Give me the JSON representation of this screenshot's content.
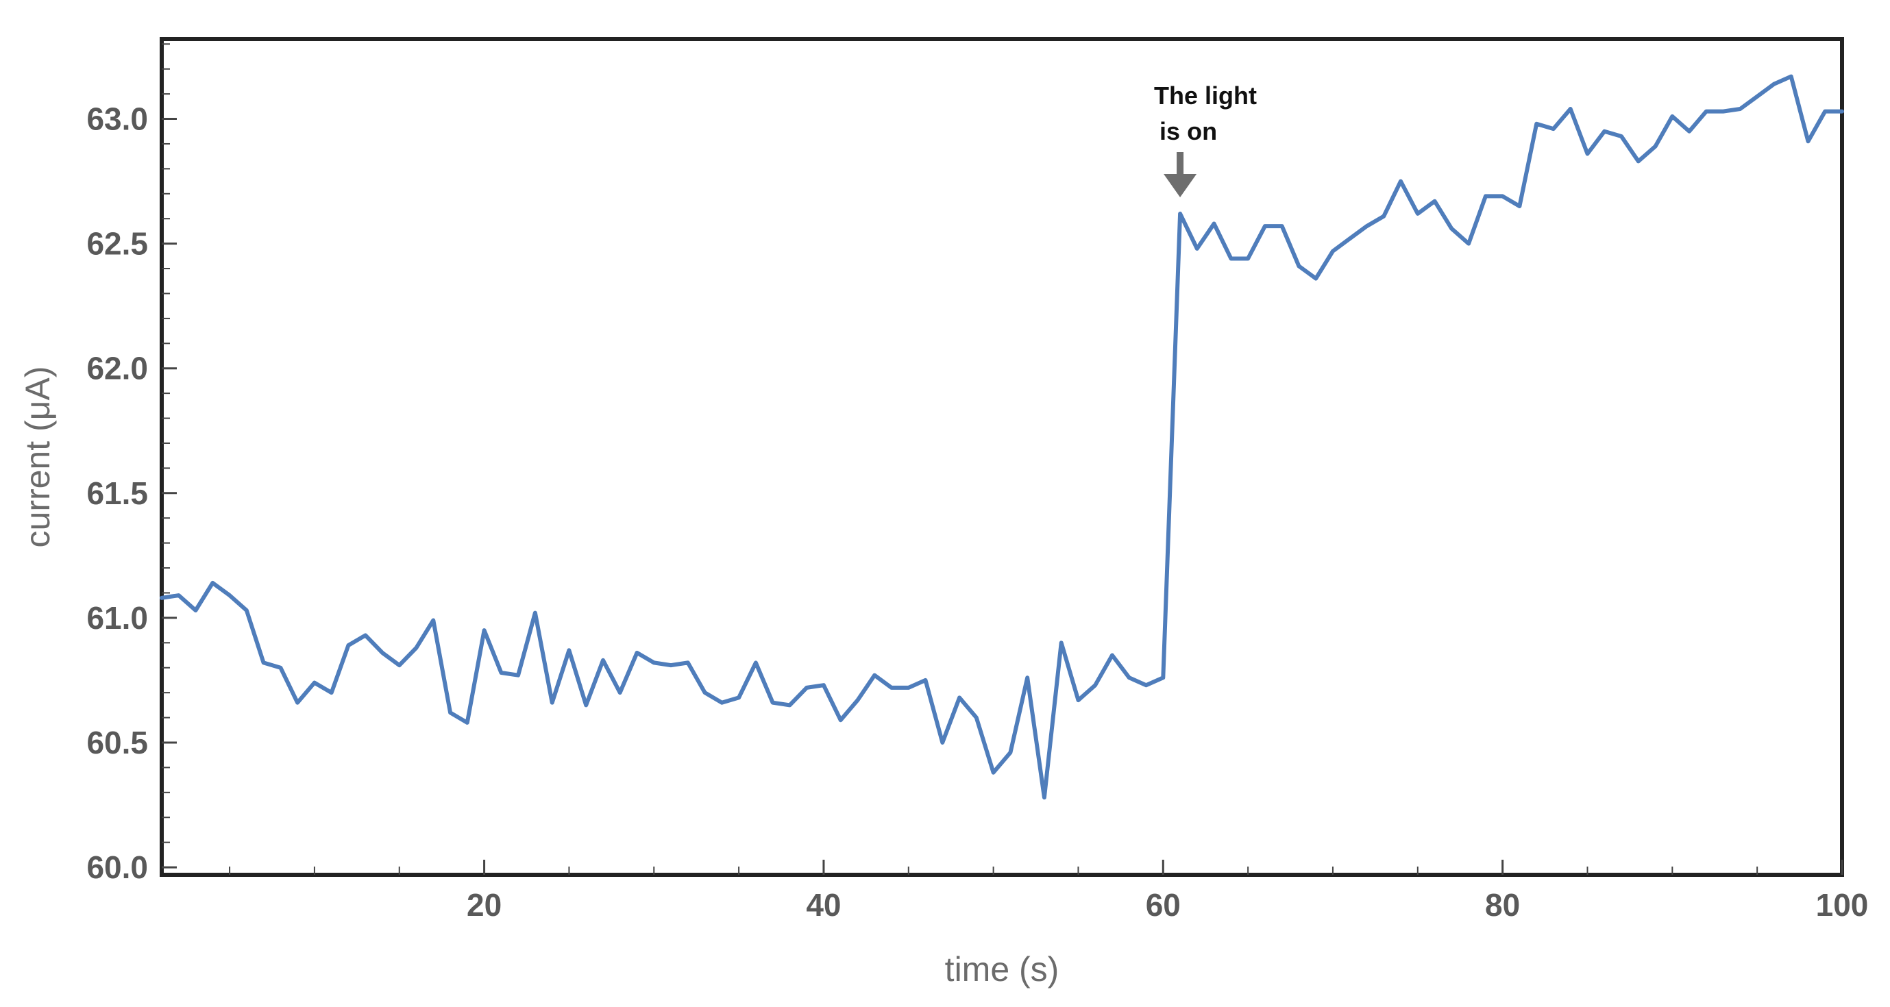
{
  "chart_data": {
    "type": "line",
    "title": "",
    "xlabel": "time (s)",
    "ylabel": "current (μA)",
    "xlim": [
      1,
      100
    ],
    "ylim": [
      59.97,
      63.32
    ],
    "xticks": [
      20,
      40,
      60,
      80,
      100
    ],
    "xtick_labels": [
      "20",
      "40",
      "60",
      "80",
      "100"
    ],
    "yticks": [
      60.0,
      60.5,
      61.0,
      61.5,
      62.0,
      62.5,
      63.0
    ],
    "ytick_labels": [
      "60.0",
      "60.5",
      "61.0",
      "61.5",
      "62.0",
      "62.5",
      "63.0"
    ],
    "grid": false,
    "legend": "none",
    "line_color": "#4f7dbb",
    "x": [
      1,
      2,
      3,
      4,
      5,
      6,
      7,
      8,
      9,
      10,
      11,
      12,
      13,
      14,
      15,
      16,
      17,
      18,
      19,
      20,
      21,
      22,
      23,
      24,
      25,
      26,
      27,
      28,
      29,
      30,
      31,
      32,
      33,
      34,
      35,
      36,
      37,
      38,
      39,
      40,
      41,
      42,
      43,
      44,
      45,
      46,
      47,
      48,
      49,
      50,
      51,
      52,
      53,
      54,
      55,
      56,
      57,
      58,
      59,
      60,
      61,
      62,
      63,
      64,
      65,
      66,
      67,
      68,
      69,
      70,
      71,
      72,
      73,
      74,
      75,
      76,
      77,
      78,
      79,
      80,
      81,
      82,
      83,
      84,
      85,
      86,
      87,
      88,
      89,
      90,
      91,
      92,
      93,
      94,
      95,
      96,
      97,
      98,
      99,
      100
    ],
    "values": [
      61.08,
      61.09,
      61.03,
      61.14,
      61.09,
      61.03,
      60.82,
      60.8,
      60.66,
      60.74,
      60.7,
      60.89,
      60.93,
      60.86,
      60.81,
      60.88,
      60.99,
      60.62,
      60.58,
      60.95,
      60.78,
      60.77,
      61.02,
      60.66,
      60.87,
      60.65,
      60.83,
      60.7,
      60.86,
      60.82,
      60.81,
      60.82,
      60.7,
      60.66,
      60.68,
      60.82,
      60.66,
      60.65,
      60.72,
      60.73,
      60.59,
      60.67,
      60.77,
      60.72,
      60.72,
      60.75,
      60.5,
      60.68,
      60.6,
      60.38,
      60.46,
      60.76,
      60.28,
      60.9,
      60.67,
      60.73,
      60.85,
      60.76,
      60.73,
      60.76,
      62.62,
      62.48,
      62.58,
      62.44,
      62.44,
      62.57,
      62.57,
      62.41,
      62.36,
      62.47,
      62.52,
      62.57,
      62.61,
      62.75,
      62.62,
      62.67,
      62.56,
      62.5,
      62.69,
      62.69,
      62.65,
      62.98,
      62.96,
      63.04,
      62.86,
      62.95,
      62.93,
      62.83,
      62.89,
      63.01,
      62.95,
      63.03,
      63.03,
      63.04,
      63.09,
      63.14,
      63.17,
      62.91,
      63.03,
      63.03
    ],
    "annotations": [
      {
        "text_lines": [
          "The light",
          "is on"
        ],
        "x": 61,
        "arrow": "down"
      }
    ]
  }
}
